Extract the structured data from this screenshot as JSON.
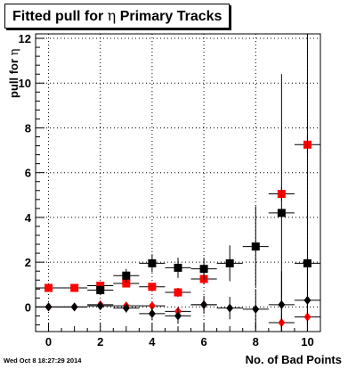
{
  "chart_data": {
    "type": "scatter",
    "title_prefix": "Fitted pull for ",
    "title_symbol": "η",
    "title_suffix": " Primary Tracks",
    "ylabel_prefix": "pull for ",
    "ylabel_symbol": "η",
    "xlabel": "No. of Bad Points",
    "timestamp": "Wed Oct  8 18:27:29 2014",
    "xlim": [
      -0.5,
      10.5
    ],
    "ylim": [
      -1.1,
      12.2
    ],
    "x_ticks": [
      0,
      2,
      4,
      6,
      8,
      10
    ],
    "y_ticks": [
      0,
      2,
      4,
      6,
      8,
      10,
      12
    ],
    "grid": true,
    "series": [
      {
        "marker": "square",
        "color": "#ff0000",
        "points": [
          {
            "x": 0,
            "y": 0.85,
            "err": 0.05
          },
          {
            "x": 1,
            "y": 0.85,
            "err": 0.05
          },
          {
            "x": 2,
            "y": 0.95,
            "err": 0.1
          },
          {
            "x": 3,
            "y": 1.05,
            "err": 0.15
          },
          {
            "x": 4,
            "y": 0.9,
            "err": 0.15
          },
          {
            "x": 5,
            "y": 0.65,
            "err": 0.2
          },
          {
            "x": 6,
            "y": 1.25,
            "err": 0.25
          },
          {
            "x": 9,
            "y": 5.05,
            "err": 0.3
          },
          {
            "x": 10,
            "y": 7.25,
            "err": 0.4
          }
        ]
      },
      {
        "marker": "square",
        "color": "#000000",
        "points": [
          {
            "x": 2,
            "y": 0.75,
            "err": 0.2
          },
          {
            "x": 3,
            "y": 1.4,
            "err": 0.3
          },
          {
            "x": 4,
            "y": 1.95,
            "err": 0.4
          },
          {
            "x": 5,
            "y": 1.75,
            "err": 0.45
          },
          {
            "x": 6,
            "y": 1.7,
            "err": 0.5
          },
          {
            "x": 7,
            "y": 1.95,
            "err": 0.8
          },
          {
            "x": 8,
            "y": 2.7,
            "err": 1.8
          },
          {
            "x": 9,
            "y": 4.2,
            "err": 6.2
          },
          {
            "x": 10,
            "y": 1.95,
            "err": 10.3
          }
        ]
      },
      {
        "marker": "diamond",
        "color": "#ff0000",
        "points": [
          {
            "x": 0,
            "y": 0.0,
            "err": 0.05
          },
          {
            "x": 1,
            "y": 0.0,
            "err": 0.05
          },
          {
            "x": 2,
            "y": 0.1,
            "err": 0.1
          },
          {
            "x": 3,
            "y": 0.05,
            "err": 0.1
          },
          {
            "x": 4,
            "y": 0.05,
            "err": 0.15
          },
          {
            "x": 5,
            "y": -0.2,
            "err": 0.2
          },
          {
            "x": 6,
            "y": 0.1,
            "err": 0.25
          },
          {
            "x": 9,
            "y": -0.7,
            "err": 0.25
          },
          {
            "x": 10,
            "y": -0.45,
            "err": 0.3
          }
        ]
      },
      {
        "marker": "diamond",
        "color": "#000000",
        "points": [
          {
            "x": 0,
            "y": 0.0,
            "err": 0.05
          },
          {
            "x": 1,
            "y": 0.0,
            "err": 0.05
          },
          {
            "x": 2,
            "y": 0.05,
            "err": 0.15
          },
          {
            "x": 3,
            "y": -0.05,
            "err": 0.2
          },
          {
            "x": 4,
            "y": -0.3,
            "err": 0.3
          },
          {
            "x": 5,
            "y": -0.4,
            "err": 0.35
          },
          {
            "x": 6,
            "y": 0.1,
            "err": 0.4
          },
          {
            "x": 7,
            "y": -0.05,
            "err": 0.5
          },
          {
            "x": 8,
            "y": -0.1,
            "err": 0.9
          },
          {
            "x": 9,
            "y": 0.1,
            "err": 1.5
          },
          {
            "x": 10,
            "y": 0.3,
            "err": 1.9
          }
        ]
      }
    ]
  }
}
